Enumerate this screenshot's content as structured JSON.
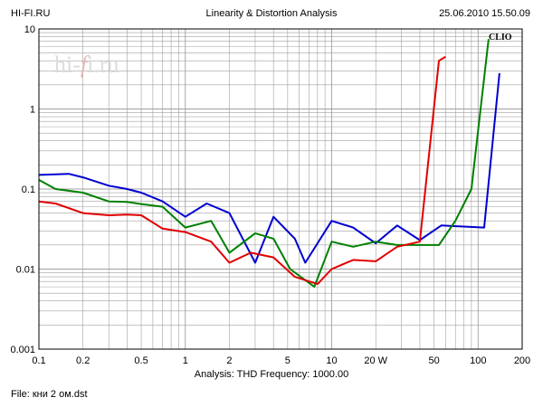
{
  "header": {
    "site": "HI-FI.RU",
    "title": "Linearity & Distortion Analysis",
    "timestamp": "25.06.2010 15.50.09"
  },
  "watermark": {
    "text_a": "hi-",
    "text_f": "f",
    "text_b": "i.ru",
    "clio": "CLIO"
  },
  "footer": {
    "analysis": "Analysis: THD   Frequency: 1000.00",
    "file": "File: кни 2 ом.dst"
  },
  "colors": {
    "red": "#e00000",
    "green": "#008000",
    "blue": "#0000d0",
    "grid": "#a0a0a0",
    "frame": "#000000"
  },
  "chart_data": {
    "type": "line",
    "title": "Linearity & Distortion Analysis",
    "xscale": "log",
    "yscale": "log",
    "xlim": [
      0.1,
      200
    ],
    "ylim": [
      0.001,
      10
    ],
    "grid": true,
    "x_tick_labels": [
      "0.1",
      "0.2",
      "0.5",
      "1",
      "2",
      "5",
      "10",
      "20 W",
      "50",
      "100",
      "200"
    ],
    "y_tick_labels": [
      "10",
      "1",
      "0.1",
      "0.01",
      "0.001"
    ],
    "series": [
      {
        "color_key": "blue",
        "x": [
          0.1,
          0.16,
          0.2,
          0.3,
          0.4,
          0.5,
          0.7,
          1.0,
          1.4,
          2.0,
          3.0,
          4.0,
          5.6,
          6.6,
          10,
          14,
          20,
          28,
          40,
          56,
          80,
          110,
          140
        ],
        "y": [
          0.15,
          0.155,
          0.14,
          0.11,
          0.1,
          0.09,
          0.07,
          0.045,
          0.066,
          0.05,
          0.012,
          0.045,
          0.024,
          0.012,
          0.04,
          0.033,
          0.021,
          0.035,
          0.023,
          0.035,
          0.034,
          0.033,
          2.8
        ]
      },
      {
        "color_key": "green",
        "x": [
          0.1,
          0.13,
          0.2,
          0.3,
          0.4,
          0.5,
          0.7,
          1.0,
          1.5,
          2.0,
          3.0,
          4.0,
          5.2,
          7.6,
          10,
          14,
          20,
          28,
          40,
          54,
          70,
          90,
          118
        ],
        "y": [
          0.13,
          0.1,
          0.09,
          0.07,
          0.069,
          0.065,
          0.06,
          0.033,
          0.04,
          0.016,
          0.028,
          0.024,
          0.01,
          0.006,
          0.022,
          0.019,
          0.022,
          0.02,
          0.02,
          0.02,
          0.04,
          0.1,
          7.5
        ]
      },
      {
        "color_key": "red",
        "x": [
          0.1,
          0.13,
          0.2,
          0.3,
          0.4,
          0.5,
          0.7,
          1.0,
          1.5,
          2.0,
          2.8,
          4.0,
          5.6,
          8.0,
          10,
          14,
          20,
          28,
          40,
          54,
          60
        ],
        "y": [
          0.07,
          0.066,
          0.05,
          0.047,
          0.048,
          0.047,
          0.032,
          0.029,
          0.022,
          0.012,
          0.016,
          0.014,
          0.008,
          0.0065,
          0.01,
          0.013,
          0.0125,
          0.019,
          0.022,
          4.0,
          4.5
        ]
      }
    ]
  }
}
